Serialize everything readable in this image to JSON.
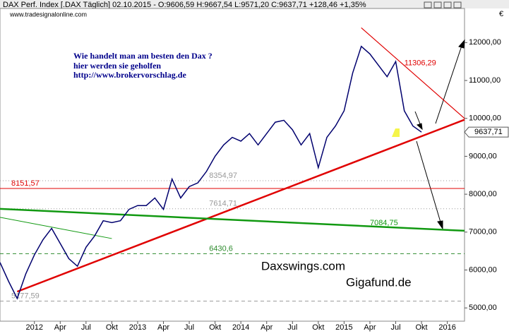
{
  "chart_data": {
    "type": "line",
    "title": "DAX Perf. Index [.DAX  Täglich] 02.10.2015 - O:9606,59 H:9667,54 L:9571,20 C:9637,71 +128,46 +1,35%",
    "subtitle": "www.tradesignalonline.com",
    "currency": "€",
    "annotations": [
      "Wie handelt man am besten  den Dax ?",
      "hier werden sie geholfen",
      "http://www.brokervorschlag.de"
    ],
    "watermarks": [
      "Daxswings.com",
      "Gigafund.de"
    ],
    "x": [
      "2011-09",
      "2011-10",
      "2011-11",
      "2011-12",
      "2012-01",
      "2012-02",
      "2012-03",
      "2012-04",
      "2012-05",
      "2012-06",
      "2012-07",
      "2012-08",
      "2012-09",
      "2012-10",
      "2012-11",
      "2012-12",
      "2013-01",
      "2013-02",
      "2013-03",
      "2013-04",
      "2013-05",
      "2013-06",
      "2013-07",
      "2013-08",
      "2013-09",
      "2013-10",
      "2013-11",
      "2013-12",
      "2014-01",
      "2014-02",
      "2014-03",
      "2014-04",
      "2014-05",
      "2014-06",
      "2014-07",
      "2014-08",
      "2014-09",
      "2014-10",
      "2014-11",
      "2014-12",
      "2015-01",
      "2015-02",
      "2015-03",
      "2015-04",
      "2015-05",
      "2015-06",
      "2015-07",
      "2015-08",
      "2015-09",
      "2015-10"
    ],
    "series": [
      {
        "name": "DAX",
        "color": "#00006e",
        "values": [
          6200,
          5700,
          5250,
          5900,
          6400,
          6800,
          7100,
          6700,
          6300,
          6100,
          6600,
          6900,
          7300,
          7250,
          7300,
          7600,
          7700,
          7700,
          7900,
          7600,
          8400,
          7900,
          8200,
          8300,
          8600,
          9000,
          9300,
          9500,
          9400,
          9600,
          9300,
          9600,
          9900,
          9950,
          9700,
          9300,
          9600,
          8700,
          9500,
          9800,
          10200,
          11200,
          11900,
          11700,
          11400,
          11100,
          11500,
          10200,
          9800,
          9637.71
        ]
      }
    ],
    "last_price": {
      "value": 9637.71,
      "label": "9637,71"
    },
    "levels": [
      {
        "value": 8151.57,
        "label": "8151,57",
        "color": "#e00000",
        "style": "solid",
        "label_x": "2011-09"
      },
      {
        "value": 8354.97,
        "label": "8354,97",
        "color": "#999999",
        "style": "dotted",
        "label_x": "2013-08"
      },
      {
        "value": 7614.71,
        "label": "7614,71",
        "color": "#999999",
        "style": "dotted",
        "label_x": "2013-08"
      },
      {
        "value": 6430.6,
        "label": "6430,6",
        "color": "#2e8b2e",
        "style": "dashed",
        "label_x": "2013-08"
      },
      {
        "value": 5177.59,
        "label": "5177,59",
        "color": "#999999",
        "style": "dashed",
        "label_x": "2011-09"
      }
    ],
    "trendlines": [
      {
        "x": [
          "2011-11",
          "2016-03"
        ],
        "values": [
          5430,
          9965
        ],
        "color": "#e00000",
        "width": 2.5
      },
      {
        "x": [
          "2011-09",
          "2016-03"
        ],
        "values": [
          7614,
          7035
        ],
        "color": "#119911",
        "width": 2.5
      },
      {
        "x": [
          "2011-09",
          "2012-10"
        ],
        "values": [
          7390,
          6830
        ],
        "color": "#119911",
        "width": 1
      },
      {
        "x": [
          "2015-03",
          "2016-03"
        ],
        "values": [
          12390,
          10000
        ],
        "color": "#e00000",
        "width": 1
      },
      {
        "x": [
          "2015-03",
          "2016-03"
        ],
        "values": [
          12390,
          10000
        ],
        "color": "#e00000",
        "width": 1
      }
    ],
    "trend_labels": [
      {
        "value": 7084.75,
        "label": "7084,75",
        "x": "2015-04",
        "color": "#119911"
      },
      {
        "value": 11306.29,
        "label": "11306,29",
        "x": "2015-08",
        "color": "#e00000"
      }
    ],
    "xlim": [
      "2011-09",
      "2016-03"
    ],
    "xticks": [
      {
        "value": "2012-01",
        "label": "2012"
      },
      {
        "value": "2012-04",
        "label": "Apr"
      },
      {
        "value": "2012-07",
        "label": "Jul"
      },
      {
        "value": "2012-10",
        "label": "Okt"
      },
      {
        "value": "2013-01",
        "label": "2013"
      },
      {
        "value": "2013-04",
        "label": "Apr"
      },
      {
        "value": "2013-07",
        "label": "Jul"
      },
      {
        "value": "2013-10",
        "label": "Okt"
      },
      {
        "value": "2014-01",
        "label": "2014"
      },
      {
        "value": "2014-04",
        "label": "Apr"
      },
      {
        "value": "2014-07",
        "label": "Jul"
      },
      {
        "value": "2014-10",
        "label": "Okt"
      },
      {
        "value": "2015-01",
        "label": "2015"
      },
      {
        "value": "2015-04",
        "label": "Apr"
      },
      {
        "value": "2015-07",
        "label": "Jul"
      },
      {
        "value": "2015-10",
        "label": "Okt"
      },
      {
        "value": "2016-01",
        "label": "2016"
      }
    ],
    "ylim": [
      4650,
      12900
    ],
    "yticks": [
      {
        "value": 5000,
        "label": "5000,00"
      },
      {
        "value": 6000,
        "label": "6000,00"
      },
      {
        "value": 7000,
        "label": "7000,00"
      },
      {
        "value": 8000,
        "label": "8000,00"
      },
      {
        "value": 9000,
        "label": "9000,00"
      },
      {
        "value": 10000,
        "label": "10000,00"
      },
      {
        "value": 11000,
        "label": "11000,00"
      },
      {
        "value": 12000,
        "label": "12000,00"
      }
    ]
  }
}
